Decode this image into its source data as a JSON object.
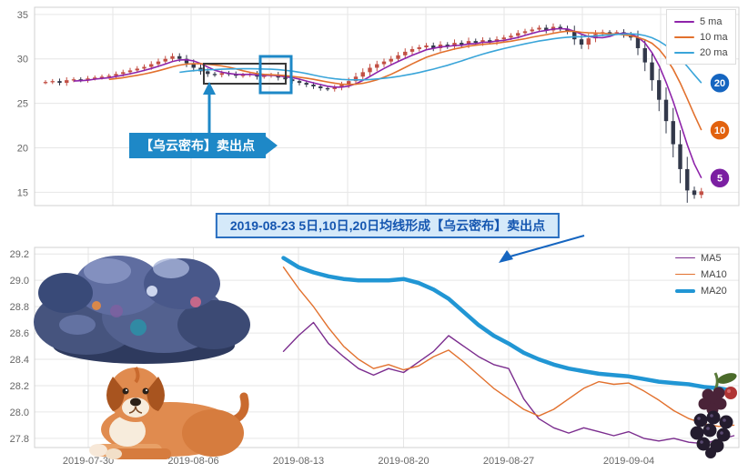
{
  "banner": {
    "text": "2019-08-23 5日,10日,20日均线形成【乌云密布】卖出点"
  },
  "callout": {
    "text": "【乌云密布】卖出点"
  },
  "colors": {
    "accent_blue": "#1e88c7",
    "banner_blue": "#1565c0"
  },
  "chart_data": [
    {
      "type": "candlestick",
      "title": "",
      "ylabel": "",
      "yticks": [
        15,
        20,
        25,
        30,
        35
      ],
      "ylim": [
        13.5,
        35.8
      ],
      "grid": true,
      "legend_position": "top-right",
      "close": [
        27.4,
        27.5,
        27.3,
        27.6,
        27.7,
        27.6,
        27.8,
        27.9,
        28.0,
        28.1,
        28.3,
        28.5,
        28.7,
        28.9,
        29.1,
        29.4,
        29.7,
        30.0,
        30.3,
        30.0,
        29.5,
        29.0,
        28.6,
        28.3,
        28.2,
        28.4,
        28.3,
        28.1,
        28.2,
        28.3,
        28.0,
        28.1,
        28.2,
        27.9,
        27.7,
        27.5,
        27.3,
        27.1,
        26.9,
        26.7,
        26.6,
        26.8,
        27.1,
        27.5,
        28.0,
        28.5,
        29.0,
        29.4,
        29.7,
        30.0,
        30.4,
        30.8,
        31.1,
        31.3,
        31.5,
        31.2,
        31.6,
        31.4,
        31.8,
        31.6,
        32.0,
        31.8,
        32.1,
        31.9,
        32.2,
        32.4,
        32.6,
        32.9,
        33.1,
        33.3,
        33.5,
        33.2,
        33.6,
        33.4,
        33.1,
        32.2,
        31.6,
        32.3,
        32.8,
        33.0,
        32.9,
        33.0,
        32.7,
        32.4,
        31.2,
        29.6,
        27.6,
        25.4,
        23.0,
        20.4,
        17.6,
        15.2,
        14.7,
        15.1
      ],
      "colors": {
        "up": "#c24f44",
        "down": "#32384a"
      },
      "mas": [
        {
          "period": 5,
          "label": "5 ma",
          "color": "#8e24aa",
          "badge": "#7b1fa2",
          "badge_label": "5"
        },
        {
          "period": 10,
          "label": "10 ma",
          "color": "#e2712e",
          "badge": "#e2620e",
          "badge_label": "10"
        },
        {
          "period": 20,
          "label": "20 ma",
          "color": "#3aa5d9",
          "badge": "#1565c0",
          "badge_label": "20"
        }
      ]
    },
    {
      "type": "line",
      "title": "",
      "yticks": [
        "29.2",
        "29.0",
        "28.8",
        "28.6",
        "28.4",
        "28.2",
        "28.0",
        "27.8"
      ],
      "ylim": [
        27.73,
        29.25
      ],
      "grid": true,
      "legend_position": "top-right",
      "xticks": [
        {
          "day": 0,
          "label": "2019-07-30"
        },
        {
          "day": 7,
          "label": "2019-08-06"
        },
        {
          "day": 14,
          "label": "2019-08-13"
        },
        {
          "day": 21,
          "label": "2019-08-20"
        },
        {
          "day": 28,
          "label": "2019-08-27"
        },
        {
          "day": 36,
          "label": "2019-09-04"
        }
      ],
      "series": [
        {
          "name": "MA5",
          "color": "#7b2d8e",
          "width": 1.4,
          "points": [
            [
              13,
              28.46
            ],
            [
              14,
              28.58
            ],
            [
              15,
              28.68
            ],
            [
              16,
              28.52
            ],
            [
              17,
              28.42
            ],
            [
              18,
              28.33
            ],
            [
              19,
              28.28
            ],
            [
              20,
              28.33
            ],
            [
              21,
              28.3
            ],
            [
              22,
              28.38
            ],
            [
              23,
              28.46
            ],
            [
              24,
              28.58
            ],
            [
              25,
              28.5
            ],
            [
              26,
              28.42
            ],
            [
              27,
              28.36
            ],
            [
              28,
              28.33
            ],
            [
              29,
              28.1
            ],
            [
              30,
              27.95
            ],
            [
              31,
              27.88
            ],
            [
              32,
              27.84
            ],
            [
              33,
              27.88
            ],
            [
              34,
              27.85
            ],
            [
              35,
              27.82
            ],
            [
              36,
              27.85
            ],
            [
              37,
              27.8
            ],
            [
              38,
              27.78
            ],
            [
              39,
              27.8
            ],
            [
              40,
              27.77
            ],
            [
              41,
              27.76
            ],
            [
              42,
              27.79
            ],
            [
              43,
              27.82
            ]
          ]
        },
        {
          "name": "MA10",
          "color": "#e2712e",
          "width": 1.4,
          "points": [
            [
              13,
              29.1
            ],
            [
              14,
              28.94
            ],
            [
              15,
              28.8
            ],
            [
              16,
              28.64
            ],
            [
              17,
              28.5
            ],
            [
              18,
              28.4
            ],
            [
              19,
              28.33
            ],
            [
              20,
              28.36
            ],
            [
              21,
              28.32
            ],
            [
              22,
              28.35
            ],
            [
              23,
              28.42
            ],
            [
              24,
              28.47
            ],
            [
              25,
              28.38
            ],
            [
              26,
              28.28
            ],
            [
              27,
              28.18
            ],
            [
              28,
              28.1
            ],
            [
              29,
              28.02
            ],
            [
              30,
              27.97
            ],
            [
              31,
              28.02
            ],
            [
              32,
              28.1
            ],
            [
              33,
              28.18
            ],
            [
              34,
              28.23
            ],
            [
              35,
              28.21
            ],
            [
              36,
              28.22
            ],
            [
              37,
              28.16
            ],
            [
              38,
              28.09
            ],
            [
              39,
              28.01
            ],
            [
              40,
              27.95
            ],
            [
              41,
              27.91
            ],
            [
              42,
              27.89
            ],
            [
              43,
              27.9
            ]
          ]
        },
        {
          "name": "MA20",
          "color": "#2196d4",
          "width": 4.5,
          "points": [
            [
              13,
              29.17
            ],
            [
              14,
              29.1
            ],
            [
              15,
              29.06
            ],
            [
              16,
              29.03
            ],
            [
              17,
              29.01
            ],
            [
              18,
              29.0
            ],
            [
              19,
              29.0
            ],
            [
              20,
              29.0
            ],
            [
              21,
              29.01
            ],
            [
              22,
              28.98
            ],
            [
              23,
              28.93
            ],
            [
              24,
              28.86
            ],
            [
              25,
              28.76
            ],
            [
              26,
              28.66
            ],
            [
              27,
              28.58
            ],
            [
              28,
              28.52
            ],
            [
              29,
              28.45
            ],
            [
              30,
              28.4
            ],
            [
              31,
              28.36
            ],
            [
              32,
              28.33
            ],
            [
              33,
              28.31
            ],
            [
              34,
              28.29
            ],
            [
              35,
              28.28
            ],
            [
              36,
              28.27
            ],
            [
              37,
              28.25
            ],
            [
              38,
              28.23
            ],
            [
              39,
              28.22
            ],
            [
              40,
              28.21
            ],
            [
              41,
              28.19
            ],
            [
              42,
              28.18
            ],
            [
              43,
              28.16
            ]
          ]
        }
      ]
    }
  ]
}
